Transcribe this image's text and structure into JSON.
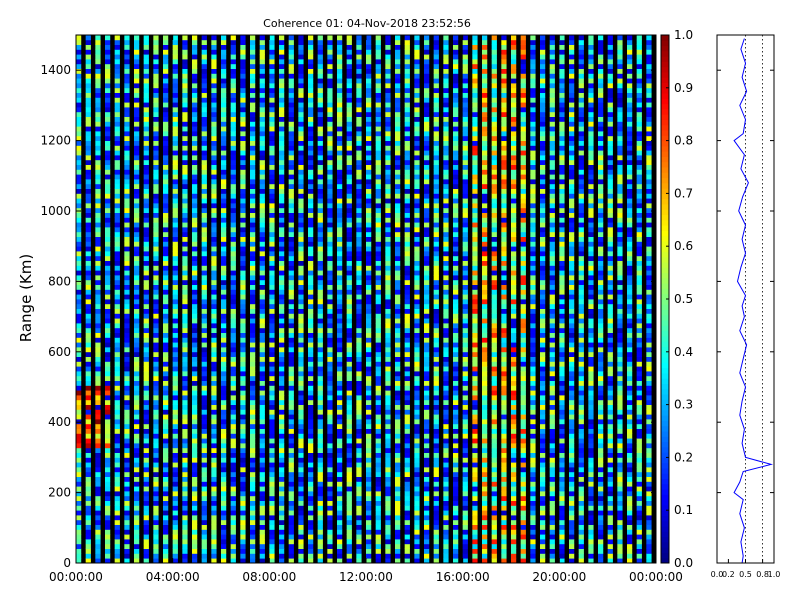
{
  "chart_data": [
    {
      "type": "heatmap",
      "title": "Coherence 01: 04-Nov-2018 23:52:56",
      "xlabel": "",
      "ylabel": "Range (Km)",
      "x_tick_labels": [
        "00:00:00",
        "04:00:00",
        "08:00:00",
        "12:00:00",
        "16:00:00",
        "20:00:00",
        "00:00:00"
      ],
      "x_range_hours": [
        0,
        24
      ],
      "y_ticks": [
        0,
        200,
        400,
        600,
        800,
        1000,
        1200,
        1400
      ],
      "ylim": [
        0,
        1500
      ],
      "colorbar": {
        "colormap": "jet",
        "range": [
          0.0,
          1.0
        ],
        "ticks": [
          "0.0",
          "0.1",
          "0.2",
          "0.3",
          "0.4",
          "0.5",
          "0.6",
          "0.7",
          "0.8",
          "0.9",
          "1.0"
        ]
      },
      "regions": [
        {
          "description": "elevated coherence band",
          "x_hours": [
            16.2,
            18.5
          ],
          "y_km": [
            0,
            1500
          ],
          "mean": 0.6
        },
        {
          "description": "high coherence patch",
          "x_hours": [
            0.0,
            1.5
          ],
          "y_km": [
            330,
            500
          ],
          "mean": 0.8
        }
      ],
      "background_mean": 0.35,
      "grid": false
    },
    {
      "type": "line",
      "title": "",
      "xlabel": "",
      "ylabel": "",
      "xlim": [
        0.0,
        1.0
      ],
      "x_tick_labels": [
        "0.0",
        "0.2",
        "0.5",
        "0.8",
        "1.0"
      ],
      "ylim": [
        0,
        1500
      ],
      "reference_lines_x": [
        0.5,
        0.8
      ],
      "series": [
        {
          "color": "#0000ff",
          "points": [
            [
              0.48,
              1490
            ],
            [
              0.42,
              1460
            ],
            [
              0.5,
              1420
            ],
            [
              0.44,
              1380
            ],
            [
              0.52,
              1340
            ],
            [
              0.4,
              1300
            ],
            [
              0.5,
              1260
            ],
            [
              0.46,
              1220
            ],
            [
              0.3,
              1200
            ],
            [
              0.48,
              1160
            ],
            [
              0.42,
              1120
            ],
            [
              0.55,
              1080
            ],
            [
              0.45,
              1040
            ],
            [
              0.38,
              1000
            ],
            [
              0.5,
              960
            ],
            [
              0.44,
              920
            ],
            [
              0.5,
              880
            ],
            [
              0.42,
              840
            ],
            [
              0.36,
              800
            ],
            [
              0.5,
              760
            ],
            [
              0.44,
              730
            ],
            [
              0.48,
              700
            ],
            [
              0.4,
              660
            ],
            [
              0.52,
              620
            ],
            [
              0.46,
              580
            ],
            [
              0.4,
              540
            ],
            [
              0.5,
              500
            ],
            [
              0.44,
              460
            ],
            [
              0.4,
              420
            ],
            [
              0.48,
              380
            ],
            [
              0.44,
              340
            ],
            [
              0.5,
              300
            ],
            [
              0.95,
              280
            ],
            [
              0.46,
              260
            ],
            [
              0.4,
              230
            ],
            [
              0.3,
              200
            ],
            [
              0.46,
              180
            ],
            [
              0.4,
              140
            ],
            [
              0.48,
              100
            ],
            [
              0.42,
              60
            ],
            [
              0.46,
              20
            ],
            [
              0.44,
              0
            ]
          ]
        }
      ]
    }
  ],
  "colors": {
    "line": "#0000ff",
    "axes": "#000000"
  }
}
